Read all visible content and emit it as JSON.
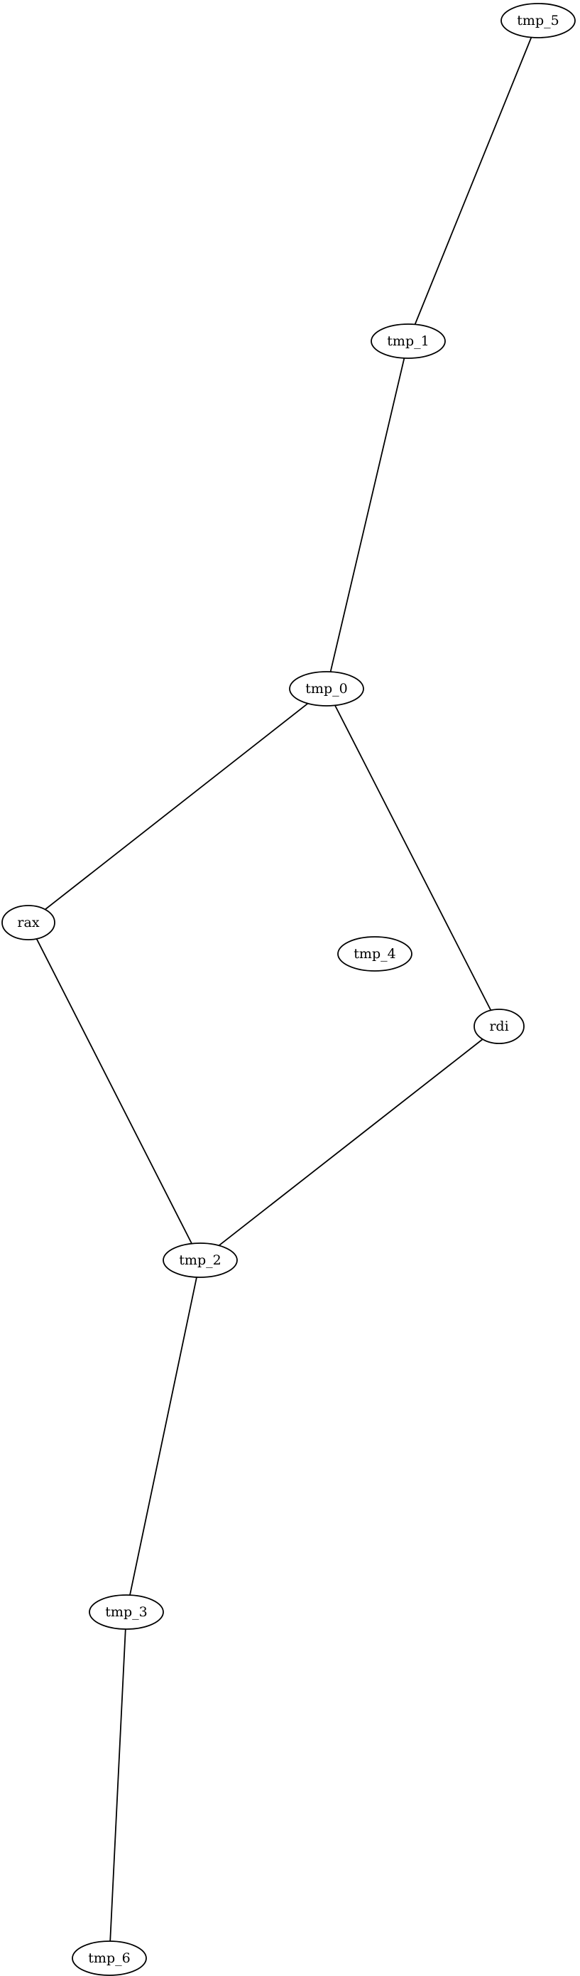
{
  "graph": {
    "type": "undirected",
    "colors": {
      "background": "#ffffff",
      "stroke": "#000000",
      "text": "#000000"
    },
    "nodes": [
      {
        "id": "tmp_5",
        "label": "tmp_5"
      },
      {
        "id": "tmp_1",
        "label": "tmp_1"
      },
      {
        "id": "tmp_0",
        "label": "tmp_0"
      },
      {
        "id": "rax",
        "label": "rax"
      },
      {
        "id": "tmp_4",
        "label": "tmp_4"
      },
      {
        "id": "rdi",
        "label": "rdi"
      },
      {
        "id": "tmp_2",
        "label": "tmp_2"
      },
      {
        "id": "tmp_3",
        "label": "tmp_3"
      },
      {
        "id": "tmp_6",
        "label": "tmp_6"
      }
    ],
    "edges": [
      {
        "from": "tmp_5",
        "to": "tmp_1"
      },
      {
        "from": "tmp_1",
        "to": "tmp_0"
      },
      {
        "from": "tmp_0",
        "to": "rax"
      },
      {
        "from": "tmp_0",
        "to": "rdi"
      },
      {
        "from": "rax",
        "to": "tmp_2"
      },
      {
        "from": "rdi",
        "to": "tmp_2"
      },
      {
        "from": "tmp_2",
        "to": "tmp_3"
      },
      {
        "from": "tmp_3",
        "to": "tmp_6"
      }
    ]
  }
}
